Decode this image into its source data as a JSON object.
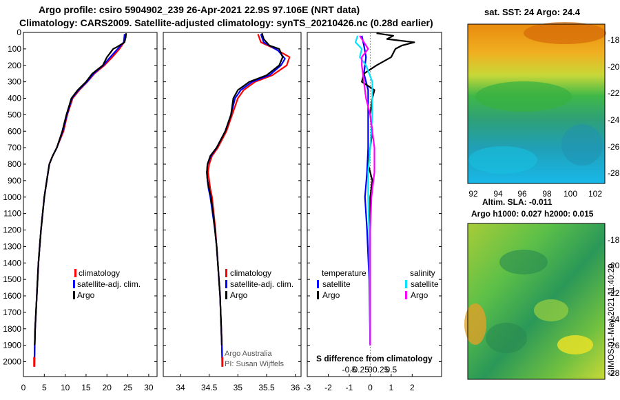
{
  "header": {
    "line1": "Argo profile: csiro 5904902_239 26-Apr-2021 22.9S 97.106E (NRT data)",
    "line2": "Climatology: CARS2009. Satellite-adjusted climatology: synTS_20210426.nc (0.28d earlier)"
  },
  "colors": {
    "climatology": "#ff0000",
    "satellite": "#0000ff",
    "argo": "#000000",
    "satellite_s": "#00e5ff",
    "argo_s": "#ff00ff"
  },
  "chart_data": [
    {
      "type": "line",
      "name": "temperature-profile",
      "xlim": [
        0,
        32
      ],
      "ylim": [
        2090,
        0
      ],
      "xticks": [
        0,
        5,
        10,
        15,
        20,
        25,
        30
      ],
      "yticks": [
        0,
        100,
        200,
        300,
        400,
        500,
        600,
        700,
        800,
        900,
        1000,
        1100,
        1200,
        1300,
        1400,
        1500,
        1600,
        1700,
        1800,
        1900,
        2000
      ],
      "legend": [
        "climatology",
        "satellite-adj. clim.",
        "Argo"
      ],
      "series": [
        {
          "name": "climatology",
          "color_key": "climatology",
          "points": [
            [
              24.2,
              10
            ],
            [
              24.1,
              60
            ],
            [
              23.0,
              100
            ],
            [
              21.3,
              150
            ],
            [
              19.4,
              200
            ],
            [
              17.0,
              250
            ],
            [
              15.3,
              300
            ],
            [
              13.4,
              350
            ],
            [
              11.8,
              400
            ],
            [
              10.5,
              500
            ],
            [
              9.6,
              600
            ],
            [
              8.0,
              700
            ],
            [
              7.0,
              750
            ],
            [
              6.2,
              800
            ],
            [
              5.6,
              900
            ],
            [
              5.0,
              1000
            ],
            [
              4.6,
              1100
            ],
            [
              4.2,
              1200
            ],
            [
              3.9,
              1300
            ],
            [
              3.6,
              1400
            ],
            [
              3.4,
              1500
            ],
            [
              3.2,
              1600
            ],
            [
              3.0,
              1700
            ],
            [
              2.8,
              1800
            ],
            [
              2.7,
              1900
            ],
            [
              2.6,
              2030
            ]
          ]
        },
        {
          "name": "satellite-adj. clim.",
          "color_key": "satellite",
          "points": [
            [
              24.3,
              10
            ],
            [
              24.0,
              60
            ],
            [
              22.6,
              100
            ],
            [
              20.8,
              150
            ],
            [
              19.1,
              200
            ],
            [
              16.8,
              250
            ],
            [
              15.2,
              300
            ],
            [
              13.2,
              350
            ],
            [
              11.6,
              400
            ],
            [
              10.4,
              500
            ],
            [
              9.4,
              600
            ],
            [
              8.0,
              700
            ],
            [
              7.0,
              750
            ],
            [
              6.2,
              800
            ],
            [
              5.6,
              900
            ],
            [
              5.0,
              1000
            ],
            [
              4.6,
              1100
            ],
            [
              4.2,
              1200
            ],
            [
              3.9,
              1300
            ],
            [
              3.6,
              1400
            ],
            [
              3.4,
              1500
            ],
            [
              3.2,
              1600
            ],
            [
              3.0,
              1700
            ],
            [
              2.8,
              1800
            ],
            [
              2.7,
              1900
            ],
            [
              2.6,
              2030
            ]
          ]
        },
        {
          "name": "Argo",
          "color_key": "argo",
          "points": [
            [
              24.6,
              5
            ],
            [
              24.5,
              30
            ],
            [
              24.2,
              60
            ],
            [
              22.3,
              90
            ],
            [
              21.5,
              100
            ],
            [
              20.0,
              150
            ],
            [
              19.0,
              200
            ],
            [
              16.5,
              250
            ],
            [
              15.0,
              300
            ],
            [
              13.0,
              350
            ],
            [
              11.5,
              400
            ],
            [
              10.3,
              500
            ],
            [
              9.3,
              600
            ],
            [
              8.0,
              700
            ],
            [
              7.0,
              750
            ],
            [
              6.2,
              800
            ],
            [
              5.6,
              900
            ],
            [
              5.0,
              1000
            ],
            [
              4.6,
              1100
            ],
            [
              4.2,
              1200
            ],
            [
              3.9,
              1300
            ],
            [
              3.6,
              1400
            ],
            [
              3.4,
              1500
            ],
            [
              3.2,
              1600
            ],
            [
              3.0,
              1700
            ],
            [
              2.8,
              1800
            ],
            [
              2.7,
              1900
            ]
          ]
        }
      ]
    },
    {
      "type": "line",
      "name": "salinity-profile",
      "xlim": [
        33.7,
        36.1
      ],
      "ylim": [
        2090,
        0
      ],
      "xticks": [
        34,
        34.5,
        35,
        35.5,
        36
      ],
      "xtick_labels": [
        "34",
        "34.5",
        "35",
        "35.5",
        "36"
      ],
      "legend": [
        "climatology",
        "satellite-adj. clim.",
        "Argo"
      ],
      "annotation": [
        "Argo Australia",
        "PI: Susan Wijffels"
      ],
      "series": [
        {
          "name": "climatology",
          "color_key": "climatology",
          "points": [
            [
              35.35,
              10
            ],
            [
              35.4,
              60
            ],
            [
              35.65,
              100
            ],
            [
              35.9,
              150
            ],
            [
              35.85,
              200
            ],
            [
              35.6,
              260
            ],
            [
              35.3,
              300
            ],
            [
              35.1,
              350
            ],
            [
              35.0,
              400
            ],
            [
              34.9,
              500
            ],
            [
              34.8,
              600
            ],
            [
              34.65,
              700
            ],
            [
              34.55,
              750
            ],
            [
              34.5,
              800
            ],
            [
              34.48,
              850
            ],
            [
              34.5,
              900
            ],
            [
              34.52,
              950
            ],
            [
              34.55,
              1000
            ],
            [
              34.58,
              1100
            ],
            [
              34.61,
              1200
            ],
            [
              34.63,
              1300
            ],
            [
              34.65,
              1400
            ],
            [
              34.67,
              1500
            ],
            [
              34.69,
              1600
            ],
            [
              34.7,
              1700
            ],
            [
              34.71,
              1800
            ],
            [
              34.72,
              1900
            ],
            [
              34.73,
              2030
            ]
          ]
        },
        {
          "name": "satellite-adj. clim.",
          "color_key": "satellite",
          "points": [
            [
              35.4,
              10
            ],
            [
              35.45,
              60
            ],
            [
              35.7,
              110
            ],
            [
              35.82,
              160
            ],
            [
              35.75,
              200
            ],
            [
              35.55,
              260
            ],
            [
              35.25,
              300
            ],
            [
              35.05,
              350
            ],
            [
              34.95,
              400
            ],
            [
              34.88,
              500
            ],
            [
              34.78,
              600
            ],
            [
              34.63,
              700
            ],
            [
              34.53,
              750
            ],
            [
              34.47,
              800
            ],
            [
              34.46,
              850
            ],
            [
              34.47,
              900
            ],
            [
              34.49,
              950
            ],
            [
              34.52,
              1000
            ],
            [
              34.56,
              1100
            ],
            [
              34.6,
              1200
            ],
            [
              34.63,
              1300
            ],
            [
              34.65,
              1400
            ],
            [
              34.67,
              1500
            ],
            [
              34.69,
              1600
            ],
            [
              34.7,
              1700
            ],
            [
              34.71,
              1800
            ],
            [
              34.72,
              1900
            ],
            [
              34.73,
              2030
            ]
          ]
        },
        {
          "name": "Argo",
          "color_key": "argo",
          "points": [
            [
              35.42,
              5
            ],
            [
              35.45,
              40
            ],
            [
              35.55,
              80
            ],
            [
              35.72,
              100
            ],
            [
              35.78,
              150
            ],
            [
              35.72,
              200
            ],
            [
              35.5,
              260
            ],
            [
              35.2,
              300
            ],
            [
              35.0,
              350
            ],
            [
              34.92,
              400
            ],
            [
              34.88,
              500
            ],
            [
              34.78,
              600
            ],
            [
              34.63,
              700
            ],
            [
              34.52,
              750
            ],
            [
              34.47,
              800
            ],
            [
              34.46,
              850
            ],
            [
              34.47,
              900
            ],
            [
              34.5,
              950
            ],
            [
              34.53,
              1000
            ],
            [
              34.57,
              1100
            ],
            [
              34.6,
              1200
            ],
            [
              34.63,
              1300
            ],
            [
              34.65,
              1400
            ],
            [
              34.67,
              1500
            ],
            [
              34.69,
              1600
            ],
            [
              34.7,
              1700
            ],
            [
              34.71,
              1800
            ],
            [
              34.72,
              1900
            ]
          ]
        }
      ]
    },
    {
      "type": "line",
      "name": "difference-profile",
      "xlim": [
        -3,
        3.4
      ],
      "ylim": [
        2090,
        0
      ],
      "xticks": [
        -3,
        -2,
        -1,
        0,
        1,
        2
      ],
      "xtick_labels": [
        "-3",
        "-2",
        "-1",
        "0",
        "1",
        "2"
      ],
      "sxticks": [
        -0.5,
        -0.25,
        0,
        0.25,
        0.5
      ],
      "sxtick_labels": [
        "-0.5",
        "-0.25",
        "0",
        "0.25",
        "0.5"
      ],
      "s_scale": 2,
      "xlabel": "S difference from climatology",
      "legend_headers": [
        "temperature",
        "salinity"
      ],
      "legend": [
        "satellite",
        "Argo",
        "satellite",
        "Argo"
      ],
      "series": [
        {
          "name": "temperature satellite",
          "color_key": "satellite",
          "points": [
            [
              -0.4,
              20
            ],
            [
              -0.3,
              80
            ],
            [
              -0.2,
              150
            ],
            [
              -0.3,
              250
            ],
            [
              -0.1,
              350
            ],
            [
              -0.1,
              500
            ],
            [
              -0.1,
              700
            ],
            [
              -0.15,
              850
            ],
            [
              -0.25,
              1000
            ],
            [
              -0.15,
              1200
            ],
            [
              -0.05,
              1500
            ],
            [
              0,
              1900
            ]
          ]
        },
        {
          "name": "temperature Argo",
          "color_key": "argo",
          "points": [
            [
              0.3,
              5
            ],
            [
              1.1,
              20
            ],
            [
              0.8,
              40
            ],
            [
              2.1,
              60
            ],
            [
              1.5,
              80
            ],
            [
              1.2,
              100
            ],
            [
              1.0,
              150
            ],
            [
              0.3,
              200
            ],
            [
              -0.3,
              250
            ],
            [
              -0.4,
              300
            ],
            [
              0.2,
              350
            ],
            [
              0.1,
              400
            ],
            [
              0.0,
              500
            ],
            [
              0.1,
              600
            ],
            [
              0.0,
              700
            ],
            [
              -0.1,
              800
            ],
            [
              0.1,
              900
            ],
            [
              0.0,
              1000
            ],
            [
              0.0,
              1200
            ],
            [
              0.0,
              1500
            ],
            [
              0.0,
              1900
            ]
          ]
        },
        {
          "name": "salinity satellite",
          "color_key": "satellite_s",
          "points": [
            [
              -0.3,
              20
            ],
            [
              -0.35,
              60
            ],
            [
              -0.2,
              100
            ],
            [
              -0.25,
              150
            ],
            [
              -0.1,
              200
            ],
            [
              0.05,
              300
            ],
            [
              0.05,
              400
            ],
            [
              0.05,
              500
            ],
            [
              0.0,
              700
            ],
            [
              -0.05,
              850
            ],
            [
              -0.05,
              1000
            ],
            [
              -0.02,
              1300
            ],
            [
              0,
              1900
            ]
          ]
        },
        {
          "name": "salinity Argo",
          "color_key": "argo_s",
          "points": [
            [
              -0.25,
              20
            ],
            [
              -0.15,
              60
            ],
            [
              -0.05,
              100
            ],
            [
              -0.2,
              150
            ],
            [
              -0.2,
              200
            ],
            [
              -0.15,
              300
            ],
            [
              -0.1,
              400
            ],
            [
              0.0,
              500
            ],
            [
              0.1,
              700
            ],
            [
              0.1,
              850
            ],
            [
              0.03,
              1000
            ],
            [
              0.0,
              1200
            ],
            [
              0.0,
              1500
            ],
            [
              0.0,
              1900
            ]
          ]
        }
      ]
    }
  ],
  "maps": {
    "sst": {
      "title": "sat. SST: 24 Argo: 24.4",
      "yticks": [
        "-18",
        "-20",
        "-22",
        "-24",
        "-26",
        "-28"
      ],
      "xticks": [
        "92",
        "94",
        "96",
        "98",
        "100",
        "102"
      ]
    },
    "sla": {
      "title1": "Altim. SLA: -0.011",
      "title2": "Argo h1000: 0.027 h2000: 0.015",
      "yticks": [
        "-18",
        "-20",
        "-22",
        "-24",
        "-26",
        "-28"
      ]
    }
  },
  "credit": "©IMOS 01-May-2021 11:40:29"
}
